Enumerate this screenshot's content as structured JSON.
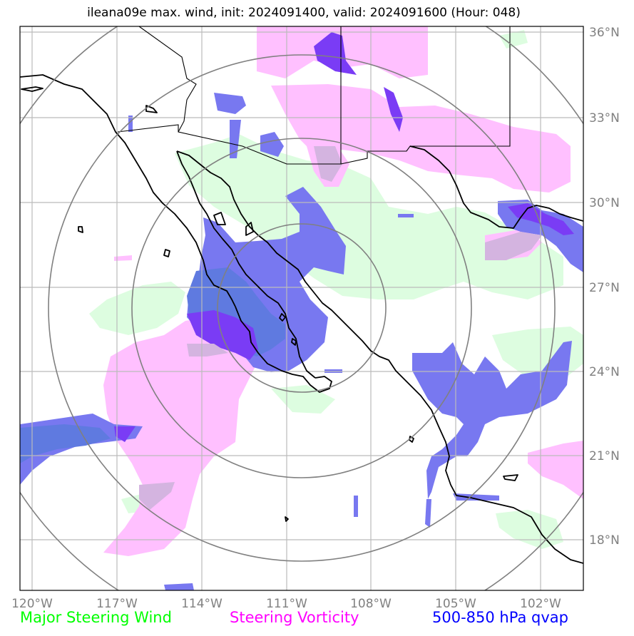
{
  "title": "ileana09e max. wind, init: 2024091400, valid: 2024091600 (Hour: 048)",
  "lon_ticks": [
    "120°W",
    "117°W",
    "114°W",
    "111°W",
    "108°W",
    "105°W",
    "102°W"
  ],
  "lat_ticks": [
    "36°N",
    "33°N",
    "30°N",
    "27°N",
    "24°N",
    "21°N",
    "18°N"
  ],
  "legend": [
    {
      "label": "Major Steering Wind",
      "color": "#00ff00"
    },
    {
      "label": "Steering Vorticity",
      "color": "#ff00ff"
    },
    {
      "label": "500-850 hPa qvap",
      "color": "#0000ff"
    }
  ],
  "colors": {
    "wind_fill": "#ddfde0",
    "vorticity_fill": "#ffc0ff",
    "qvap_fill": "#7878f0",
    "qvap_dark_fill": "#7a3cf5",
    "qvap_blend_fill": "#5f7ae0",
    "overlap_fill": "#d4b4e0",
    "grid": "#bbbbbb",
    "range_rings": "#808080"
  },
  "range_rings": {
    "center": "25.6°N 110.6°W",
    "count": 4
  }
}
